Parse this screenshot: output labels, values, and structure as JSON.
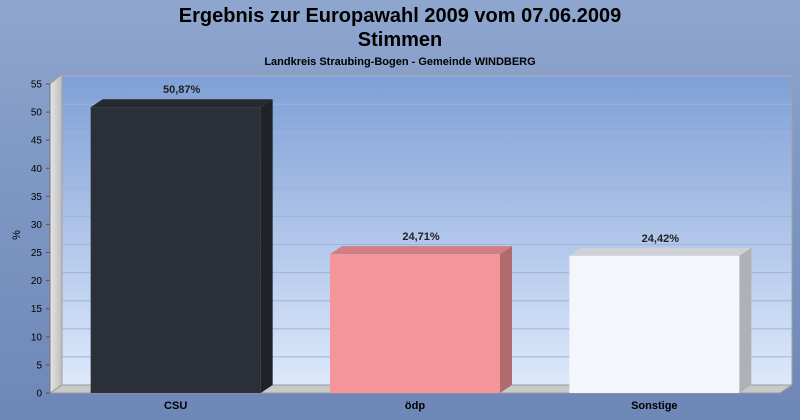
{
  "chart_data": {
    "type": "bar",
    "title": "Ergebnis zur Europawahl 2009 vom 07.06.2009",
    "title2": "Stimmen",
    "subtitle": "Landkreis Straubing-Bogen - Gemeinde WINDBERG",
    "ylabel": "%",
    "ylim": [
      0,
      55
    ],
    "yticks": [
      0,
      5,
      10,
      15,
      20,
      25,
      30,
      35,
      40,
      45,
      50,
      55
    ],
    "categories": [
      "CSU",
      "ödp",
      "Sonstige"
    ],
    "values": [
      50.87,
      24.71,
      24.42
    ],
    "value_labels": [
      "50,87%",
      "24,71%",
      "24,42%"
    ],
    "colors": [
      "#2b3038",
      "#f4959a",
      "#f4f6fc"
    ],
    "grid": true
  }
}
